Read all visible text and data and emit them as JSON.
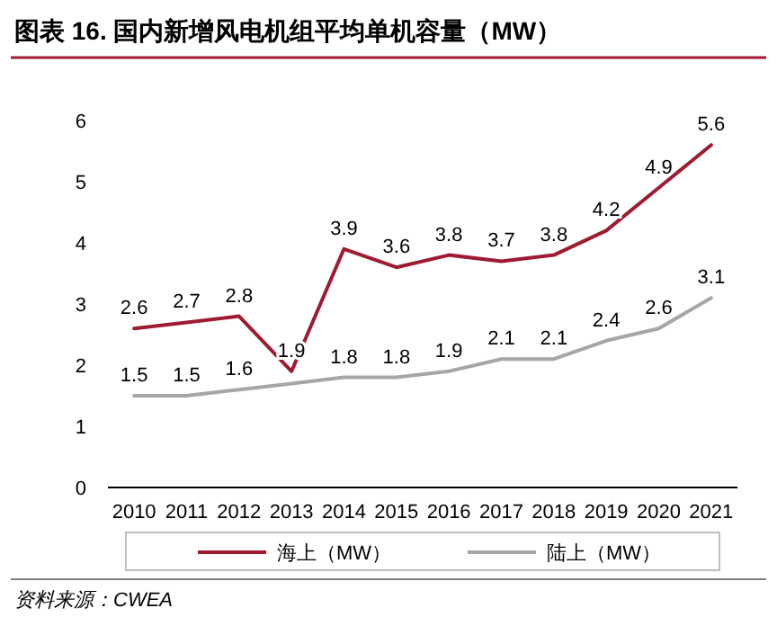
{
  "chart_data": {
    "type": "line",
    "title": "图表 16. 国内新增风电机组平均单机容量（MW）",
    "categories": [
      "2010",
      "2011",
      "2012",
      "2013",
      "2014",
      "2015",
      "2016",
      "2017",
      "2018",
      "2019",
      "2020",
      "2021"
    ],
    "series": [
      {
        "name": "海上（MW）",
        "color": "#9e1b32",
        "values": [
          2.6,
          2.7,
          2.8,
          1.9,
          3.9,
          3.6,
          3.8,
          3.7,
          3.8,
          4.2,
          4.9,
          5.6
        ],
        "value_labels": [
          "2.6",
          "2.7",
          "2.8",
          "1.9",
          "3.9",
          "3.6",
          "3.8",
          "3.7",
          "3.8",
          "4.2",
          "4.9",
          "5.6"
        ]
      },
      {
        "name": "陆上（MW）",
        "color": "#a6a6a6",
        "values": [
          1.5,
          1.5,
          1.6,
          1.7,
          1.8,
          1.8,
          1.9,
          2.1,
          2.1,
          2.4,
          2.6,
          3.1
        ],
        "value_labels": [
          "1.5",
          "1.5",
          "1.6",
          null,
          "1.8",
          "1.8",
          "1.9",
          "2.1",
          "2.1",
          "2.4",
          "2.6",
          "3.1"
        ]
      }
    ],
    "ylim": [
      0,
      6
    ],
    "yticks": [
      0,
      1,
      2,
      3,
      4,
      5,
      6
    ],
    "legend": "bottom",
    "annotations": [
      "资料来源：CWEA"
    ]
  }
}
